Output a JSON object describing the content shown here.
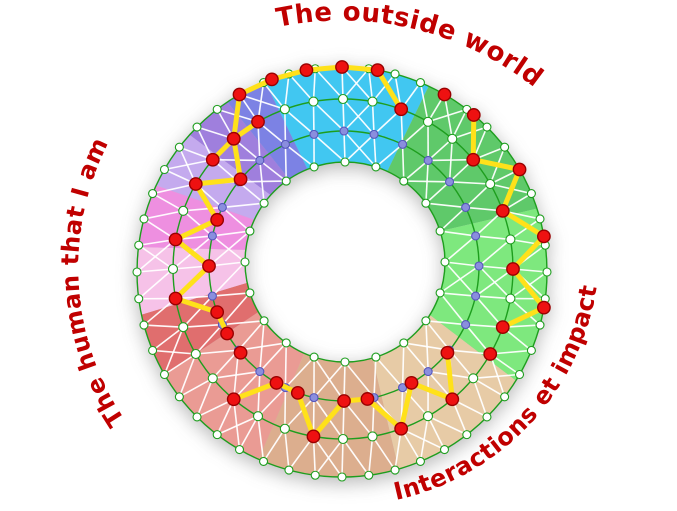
{
  "labels": {
    "top": "The outside world",
    "left": "The human that I am",
    "right": "Interactions et impact"
  },
  "colors": {
    "label_text": "#c00000",
    "ring_line": "#1e9e1e",
    "mesh_line": "#ffffff",
    "yellow_path": "#ffe11a",
    "node_white": "#ffffff",
    "node_purple": "#8a8ede",
    "node_purple_stroke": "#5656bb",
    "node_red": "#ee1111",
    "node_red_stroke": "#990000",
    "node_stroke": "#1e9e1e",
    "background": "#ffffff"
  },
  "diagram": {
    "ring_centers": [
      [
        342,
        272
      ],
      [
        343,
        269
      ],
      [
        344,
        266
      ],
      [
        345,
        262
      ]
    ],
    "ring_radii": [
      205,
      170,
      135,
      100
    ],
    "ring_counts": [
      48,
      36,
      28,
      20
    ],
    "ring_node_radii": [
      4,
      4.5,
      4,
      4
    ],
    "ring_node_colors": [
      "node_white",
      "node_white",
      "node_purple",
      "node_white"
    ],
    "sectors": [
      {
        "name": "sky",
        "start": -22,
        "end": 25,
        "color": "#41c7f1"
      },
      {
        "name": "green",
        "start": 25,
        "end": 72,
        "color": "#5fc96a"
      },
      {
        "name": "lt-green",
        "start": 72,
        "end": 122,
        "color": "#7ee87e"
      },
      {
        "name": "lt-tan",
        "start": 122,
        "end": 164,
        "color": "#e7cba6"
      },
      {
        "name": "tan",
        "start": 164,
        "end": 204,
        "color": "#dcae8e"
      },
      {
        "name": "salmon",
        "start": 204,
        "end": 240,
        "color": "#ea9b94"
      },
      {
        "name": "red",
        "start": 240,
        "end": 258,
        "color": "#e06e6e"
      },
      {
        "name": "lt-pink",
        "start": 258,
        "end": 277,
        "color": "#f6c2e8"
      },
      {
        "name": "orchid",
        "start": 277,
        "end": 295,
        "color": "#ee8fe0"
      },
      {
        "name": "lavender",
        "start": 295,
        "end": 312,
        "color": "#c4aaee"
      },
      {
        "name": "purple",
        "start": 312,
        "end": 326,
        "color": "#9f7fdd"
      },
      {
        "name": "indigo",
        "start": 326,
        "end": 338,
        "color": "#7c82e4"
      }
    ],
    "red_chain": [
      [
        -50,
        1
      ],
      [
        -40,
        1
      ],
      [
        -30,
        0
      ],
      [
        -20,
        0
      ],
      [
        -10,
        0
      ],
      [
        0,
        0
      ],
      [
        10,
        0
      ],
      [
        20,
        1
      ],
      [
        30,
        0
      ],
      [
        40,
        0
      ],
      [
        50,
        1
      ],
      [
        60,
        0
      ],
      [
        70,
        1
      ],
      [
        80,
        0
      ],
      [
        90,
        1
      ],
      [
        100,
        0
      ],
      [
        110,
        1
      ],
      [
        120,
        1
      ],
      [
        130,
        2
      ],
      [
        140,
        1
      ],
      [
        150,
        2
      ],
      [
        160,
        1
      ],
      [
        170,
        2
      ],
      [
        180,
        2
      ],
      [
        190,
        1
      ],
      [
        200,
        2
      ],
      [
        210,
        2
      ],
      [
        220,
        1
      ],
      [
        230,
        2
      ],
      [
        240,
        2
      ],
      [
        250,
        2
      ],
      [
        260,
        1
      ],
      [
        270,
        2
      ],
      [
        280,
        1
      ],
      [
        290,
        2
      ],
      [
        300,
        1
      ],
      [
        310,
        2
      ],
      [
        320,
        1
      ],
      [
        330,
        1
      ]
    ],
    "yellow_segments": [
      [
        0,
        7
      ],
      [
        9,
        16
      ],
      [
        18,
        27
      ],
      [
        29,
        38
      ]
    ]
  }
}
